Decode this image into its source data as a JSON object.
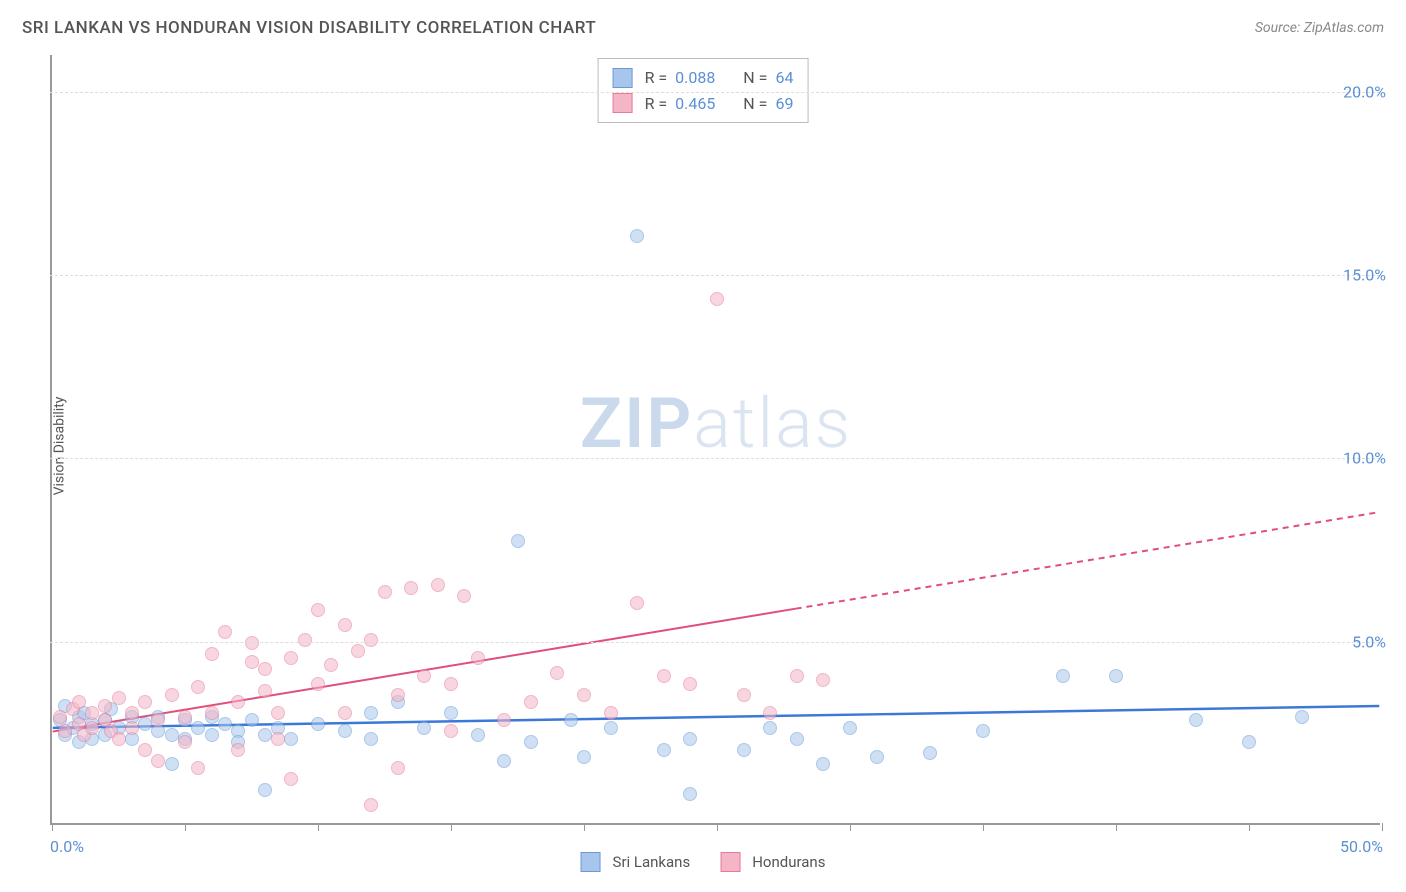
{
  "title": "SRI LANKAN VS HONDURAN VISION DISABILITY CORRELATION CHART",
  "source_prefix": "Source: ",
  "source_name": "ZipAtlas.com",
  "y_axis_label": "Vision Disability",
  "watermark_zip": "ZIP",
  "watermark_atlas": "atlas",
  "chart": {
    "type": "scatter",
    "xlim": [
      0,
      50
    ],
    "ylim": [
      0,
      21
    ],
    "x_ticks": [
      0,
      5,
      10,
      15,
      20,
      25,
      30,
      35,
      40,
      45,
      50
    ],
    "x_tick_labels": {
      "0": "0.0%",
      "50": "50.0%"
    },
    "y_ticks": [
      5,
      10,
      15,
      20
    ],
    "y_tick_labels": {
      "5": "5.0%",
      "10": "10.0%",
      "15": "15.0%",
      "20": "20.0%"
    },
    "grid_color": "#dddddd",
    "background_color": "#ffffff",
    "axis_color": "#999999",
    "tick_label_color": "#5b8fd6",
    "marker_radius": 7,
    "series": [
      {
        "name": "Sri Lankans",
        "fill_color": "#a8c6ec",
        "stroke_color": "#6a9bd8",
        "fill_opacity": 0.55,
        "R": "0.088",
        "N": "64",
        "trend": {
          "x0": 0,
          "y0": 2.6,
          "x1": 50,
          "y1": 3.2,
          "color": "#3c78d8",
          "width": 2.5,
          "dash_after_x": null
        },
        "points": [
          [
            0.3,
            2.8
          ],
          [
            0.5,
            3.2
          ],
          [
            0.5,
            2.4
          ],
          [
            0.8,
            2.6
          ],
          [
            1.0,
            2.9
          ],
          [
            1.0,
            2.2
          ],
          [
            1.2,
            3.0
          ],
          [
            1.5,
            2.7
          ],
          [
            1.5,
            2.3
          ],
          [
            2.0,
            2.8
          ],
          [
            2.0,
            2.4
          ],
          [
            2.2,
            3.1
          ],
          [
            2.5,
            2.6
          ],
          [
            3.0,
            2.9
          ],
          [
            3.0,
            2.3
          ],
          [
            3.5,
            2.7
          ],
          [
            4.0,
            2.5
          ],
          [
            4.0,
            2.9
          ],
          [
            4.5,
            2.4
          ],
          [
            4.5,
            1.6
          ],
          [
            5.0,
            2.8
          ],
          [
            5.0,
            2.3
          ],
          [
            5.5,
            2.6
          ],
          [
            6.0,
            2.4
          ],
          [
            6.0,
            2.9
          ],
          [
            6.5,
            2.7
          ],
          [
            7.0,
            2.5
          ],
          [
            7.0,
            2.2
          ],
          [
            7.5,
            2.8
          ],
          [
            8.0,
            2.4
          ],
          [
            8.0,
            0.9
          ],
          [
            8.5,
            2.6
          ],
          [
            9.0,
            2.3
          ],
          [
            10.0,
            2.7
          ],
          [
            11.0,
            2.5
          ],
          [
            12.0,
            2.3
          ],
          [
            12.0,
            3.0
          ],
          [
            13.0,
            3.3
          ],
          [
            14.0,
            2.6
          ],
          [
            15.0,
            3.0
          ],
          [
            16.0,
            2.4
          ],
          [
            17.0,
            1.7
          ],
          [
            17.5,
            7.7
          ],
          [
            18.0,
            2.2
          ],
          [
            19.5,
            2.8
          ],
          [
            20.0,
            1.8
          ],
          [
            21.0,
            2.6
          ],
          [
            22.0,
            16.0
          ],
          [
            23.0,
            2.0
          ],
          [
            24.0,
            2.3
          ],
          [
            24.0,
            0.8
          ],
          [
            26.0,
            2.0
          ],
          [
            27.0,
            2.6
          ],
          [
            28.0,
            2.3
          ],
          [
            29.0,
            1.6
          ],
          [
            30.0,
            2.6
          ],
          [
            31.0,
            1.8
          ],
          [
            33.0,
            1.9
          ],
          [
            35.0,
            2.5
          ],
          [
            38.0,
            4.0
          ],
          [
            40.0,
            4.0
          ],
          [
            43.0,
            2.8
          ],
          [
            45.0,
            2.2
          ],
          [
            47.0,
            2.9
          ]
        ]
      },
      {
        "name": "Hondurans",
        "fill_color": "#f4b6c6",
        "stroke_color": "#e77a9a",
        "fill_opacity": 0.55,
        "R": "0.465",
        "N": "69",
        "trend": {
          "x0": 0,
          "y0": 2.5,
          "x1": 50,
          "y1": 8.5,
          "color": "#e04e7b",
          "width": 2,
          "dash_after_x": 28
        },
        "points": [
          [
            0.3,
            2.9
          ],
          [
            0.5,
            2.5
          ],
          [
            0.8,
            3.1
          ],
          [
            1.0,
            2.7
          ],
          [
            1.0,
            3.3
          ],
          [
            1.2,
            2.4
          ],
          [
            1.5,
            3.0
          ],
          [
            1.5,
            2.6
          ],
          [
            2.0,
            3.2
          ],
          [
            2.0,
            2.8
          ],
          [
            2.2,
            2.5
          ],
          [
            2.5,
            3.4
          ],
          [
            2.5,
            2.3
          ],
          [
            3.0,
            3.0
          ],
          [
            3.0,
            2.6
          ],
          [
            3.5,
            3.3
          ],
          [
            3.5,
            2.0
          ],
          [
            4.0,
            2.8
          ],
          [
            4.0,
            1.7
          ],
          [
            4.5,
            3.5
          ],
          [
            5.0,
            2.9
          ],
          [
            5.0,
            2.2
          ],
          [
            5.5,
            3.7
          ],
          [
            5.5,
            1.5
          ],
          [
            6.0,
            3.0
          ],
          [
            6.0,
            4.6
          ],
          [
            6.5,
            5.2
          ],
          [
            7.0,
            3.3
          ],
          [
            7.0,
            2.0
          ],
          [
            7.5,
            4.4
          ],
          [
            7.5,
            4.9
          ],
          [
            8.0,
            3.6
          ],
          [
            8.0,
            4.2
          ],
          [
            8.5,
            3.0
          ],
          [
            8.5,
            2.3
          ],
          [
            9.0,
            4.5
          ],
          [
            9.0,
            1.2
          ],
          [
            9.5,
            5.0
          ],
          [
            10.0,
            3.8
          ],
          [
            10.0,
            5.8
          ],
          [
            10.5,
            4.3
          ],
          [
            11.0,
            3.0
          ],
          [
            11.0,
            5.4
          ],
          [
            11.5,
            4.7
          ],
          [
            12.0,
            5.0
          ],
          [
            12.0,
            0.5
          ],
          [
            12.5,
            6.3
          ],
          [
            13.0,
            3.5
          ],
          [
            13.0,
            1.5
          ],
          [
            13.5,
            6.4
          ],
          [
            14.0,
            4.0
          ],
          [
            14.5,
            6.5
          ],
          [
            15.0,
            3.8
          ],
          [
            15.0,
            2.5
          ],
          [
            15.5,
            6.2
          ],
          [
            16.0,
            4.5
          ],
          [
            17.0,
            2.8
          ],
          [
            18.0,
            3.3
          ],
          [
            19.0,
            4.1
          ],
          [
            20.0,
            3.5
          ],
          [
            21.0,
            3.0
          ],
          [
            22.0,
            6.0
          ],
          [
            23.0,
            4.0
          ],
          [
            24.0,
            3.8
          ],
          [
            25.0,
            14.3
          ],
          [
            26.0,
            3.5
          ],
          [
            27.0,
            3.0
          ],
          [
            28.0,
            4.0
          ],
          [
            29.0,
            3.9
          ]
        ]
      }
    ]
  },
  "bottom_legend": [
    {
      "label": "Sri Lankans",
      "fill": "#a8c6ec",
      "stroke": "#6a9bd8"
    },
    {
      "label": "Hondurans",
      "fill": "#f4b6c6",
      "stroke": "#e77a9a"
    }
  ]
}
